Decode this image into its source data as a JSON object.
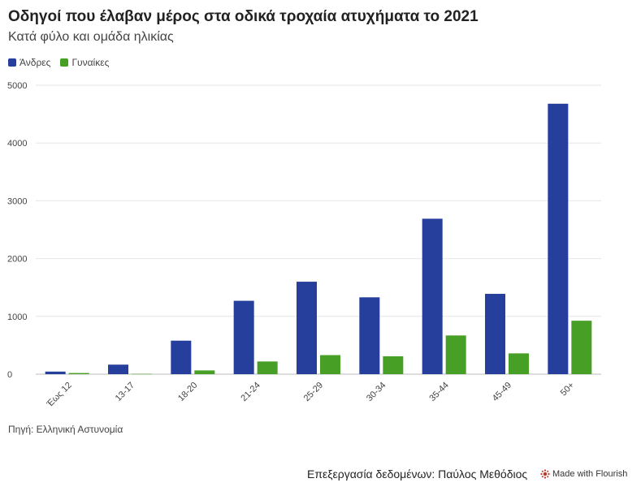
{
  "chart_data": {
    "type": "bar",
    "title": "Οδηγοί που έλαβαν μέρος στα οδικά τροχαία ατυχήματα το 2021",
    "subtitle": "Κατά φύλο και ομάδα ηλικίας",
    "categories": [
      "Έως 12",
      "13-17",
      "18-20",
      "21-24",
      "25-29",
      "30-34",
      "35-44",
      "45-49",
      "50+"
    ],
    "series": [
      {
        "name": "Άνδρες",
        "color": "#263e9c",
        "values": [
          45,
          165,
          580,
          1270,
          1600,
          1330,
          2690,
          1390,
          4680
        ]
      },
      {
        "name": "Γυναίκες",
        "color": "#47a025",
        "values": [
          20,
          5,
          65,
          220,
          330,
          310,
          670,
          360,
          925
        ]
      }
    ],
    "ylim": [
      0,
      5000
    ],
    "yticks": [
      0,
      1000,
      2000,
      3000,
      4000,
      5000
    ],
    "xlabel": "",
    "ylabel": "",
    "grid": true,
    "legend_position": "top-left"
  },
  "source": "Πηγή: Ελληνική Αστυνομία",
  "credit": "Επεξεργασία δεδομένων: Παύλος Μεθόδιος",
  "flourish_label": "Made with Flourish"
}
